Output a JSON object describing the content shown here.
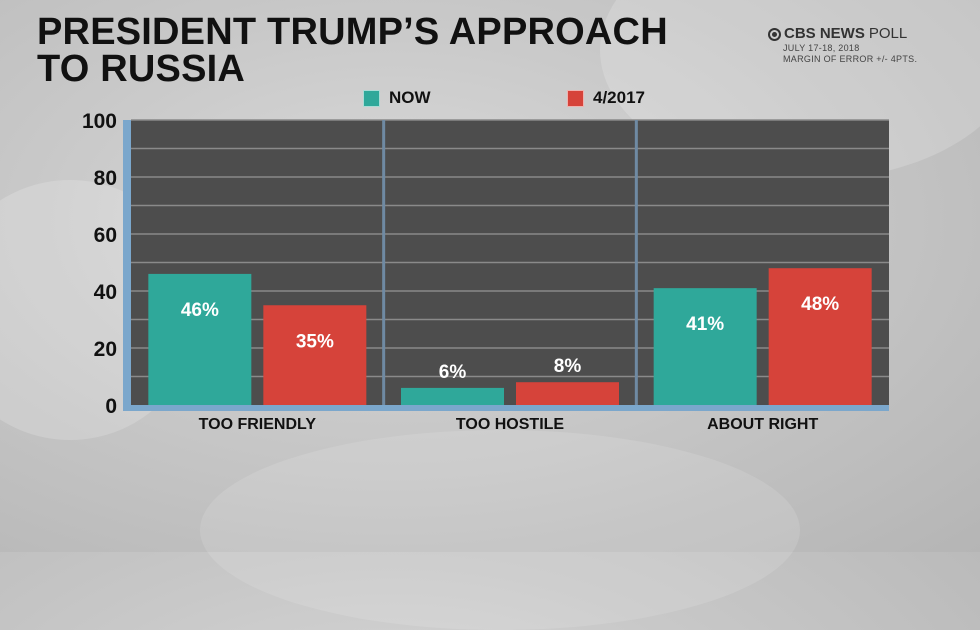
{
  "header": {
    "title": "PRESIDENT TRUMP’S APPROACH\nTO RUSSIA",
    "source_brand": "CBS NEWS",
    "source_suffix": "POLL",
    "source_dates": "JULY 17-18, 2018",
    "source_margin": "MARGIN OF ERROR +/- 4PTS."
  },
  "colors": {
    "now": "#2fa89a",
    "apr2017": "#d6433a",
    "plot_bg": "#4d4d4d",
    "grid": "#8a8a8a",
    "axis": "#7ba7cc"
  },
  "chart_data": {
    "type": "bar",
    "title": "PRESIDENT TRUMP’S APPROACH TO RUSSIA",
    "xlabel": "",
    "ylabel": "",
    "categories": [
      "TOO FRIENDLY",
      "TOO HOSTILE",
      "ABOUT RIGHT"
    ],
    "series": [
      {
        "name": "NOW",
        "values": [
          46,
          6,
          41
        ],
        "labels": [
          "46%",
          "6%",
          "41%"
        ]
      },
      {
        "name": "4/2017",
        "values": [
          35,
          8,
          48
        ],
        "labels": [
          "35%",
          "8%",
          "48%"
        ]
      }
    ],
    "ylim": [
      0,
      100
    ],
    "yticks": [
      0,
      20,
      40,
      60,
      80,
      100
    ],
    "grid_step": 10,
    "grid": true,
    "legend_position": "top-center"
  }
}
